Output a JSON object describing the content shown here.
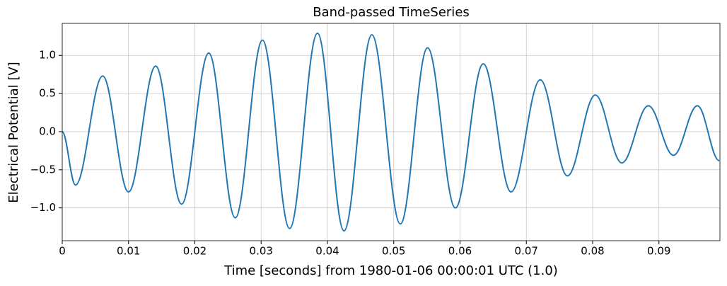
{
  "chart_data": {
    "type": "line",
    "title": "Band-passed TimeSeries",
    "x_label": "Time [seconds] from 1980-01-06 00:00:01 UTC (1.0)",
    "y_label": "Electrical Potential [V]",
    "x": [
      0,
      0.002,
      0.0061,
      0.01,
      0.0141,
      0.018,
      0.0221,
      0.0261,
      0.0302,
      0.0343,
      0.0385,
      0.0425,
      0.0467,
      0.051,
      0.0551,
      0.0593,
      0.0635,
      0.0677,
      0.0721,
      0.0762,
      0.0804,
      0.0844,
      0.0884,
      0.0922,
      0.0958,
      0.0991
    ],
    "series": [
      {
        "color": "#1f77b4",
        "values": [
          0,
          -0.7,
          0.73,
          -0.79,
          0.86,
          -0.95,
          1.03,
          -1.13,
          1.2,
          -1.27,
          1.29,
          -1.3,
          1.27,
          -1.21,
          1.1,
          -1.0,
          0.89,
          -0.79,
          0.68,
          -0.58,
          0.48,
          -0.41,
          0.34,
          -0.31,
          0.34,
          -0.38
        ]
      }
    ],
    "xlim": [
      0,
      0.0992
    ],
    "ylim": [
      -1.43,
      1.42
    ],
    "xticks": [
      0,
      0.01,
      0.02,
      0.03,
      0.04,
      0.05,
      0.06,
      0.07,
      0.08,
      0.09
    ],
    "yticks": [
      {
        "value": -1,
        "label": "−1.0"
      },
      {
        "value": -0.5,
        "label": "−0.5"
      },
      {
        "value": 0,
        "label": "0.0"
      },
      0.5,
      {
        "value": 1,
        "label": "1.0"
      }
    ],
    "grid": true
  }
}
